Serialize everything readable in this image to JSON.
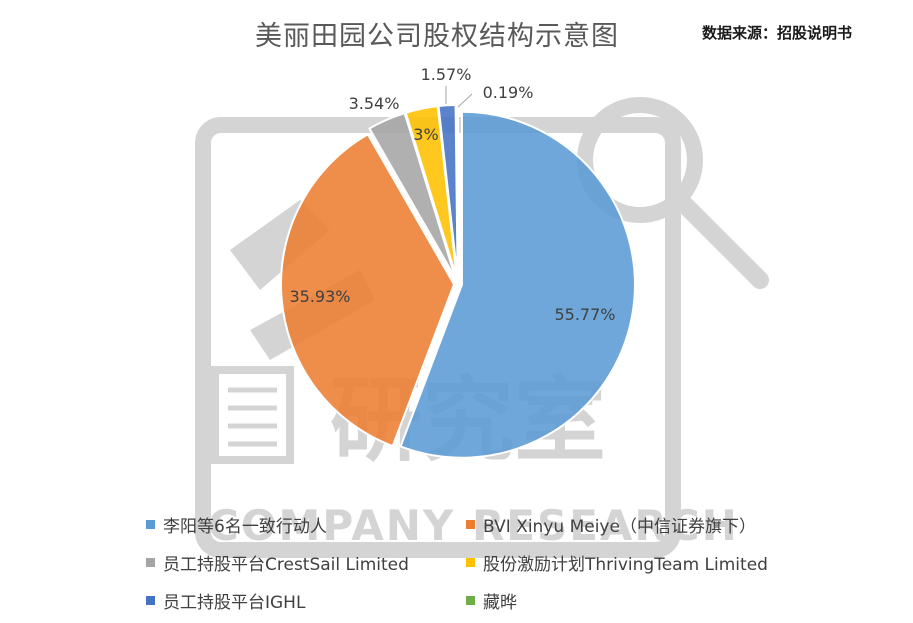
{
  "header": {
    "title": "美丽田园公司股权结构示意图",
    "source": "数据来源：招股说明书"
  },
  "watermark": {
    "text_cn": "研究室",
    "text_en": "COMPANY RESEARCH"
  },
  "chart_data": {
    "type": "pie",
    "title": "美丽田园公司股权结构示意图",
    "slices": [
      {
        "name": "李阳等6名一致行动人",
        "value": 55.77,
        "label": "55.77%",
        "color": "#5B9BD5"
      },
      {
        "name": "BVI Xinyu Meiye（中信证券旗下）",
        "value": 35.93,
        "label": "35.93%",
        "color": "#ED7D31"
      },
      {
        "name": "员工持股平台CrestSail Limited",
        "value": 3.54,
        "label": "3.54%",
        "color": "#A5A5A5"
      },
      {
        "name": "股份激励计划ThrivingTeam Limited",
        "value": 3.0,
        "label": "3%",
        "color": "#FFC000"
      },
      {
        "name": "员工持股平台IGHL",
        "value": 1.57,
        "label": "1.57%",
        "color": "#4472C4"
      },
      {
        "name": "藏晔",
        "value": 0.19,
        "label": "0.19%",
        "color": "#70AD47"
      }
    ],
    "legend_placement": "bottom"
  }
}
